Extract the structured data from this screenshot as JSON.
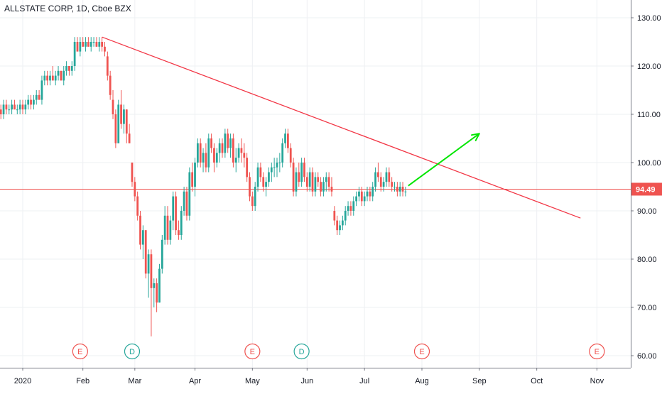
{
  "chart_title": "ALLSTATE CORP, 1D, Cboe BZX",
  "chart_data": {
    "type": "candlestick",
    "title": "ALLSTATE CORP, 1D, Cboe BZX",
    "y_axis": {
      "ticks": [
        60,
        70,
        80,
        90,
        100,
        110,
        120,
        130
      ],
      "tick_labels": [
        "60.00",
        "70.00",
        "80.00",
        "90.00",
        "100.00",
        "110.00",
        "120.00",
        "130.00"
      ],
      "range": [
        57.5,
        133
      ],
      "position": "right"
    },
    "x_axis": {
      "ticks": [
        {
          "label": "2020",
          "day": 0
        },
        {
          "label": "Feb",
          "day": 22
        },
        {
          "label": "Mar",
          "day": 41
        },
        {
          "label": "Apr",
          "day": 63
        },
        {
          "label": "May",
          "day": 84
        },
        {
          "label": "Jun",
          "day": 104
        },
        {
          "label": "Jul",
          "day": 125
        },
        {
          "label": "Aug",
          "day": 146
        },
        {
          "label": "Sep",
          "day": 167
        },
        {
          "label": "Oct",
          "day": 188
        },
        {
          "label": "Nov",
          "day": 210
        }
      ],
      "range": [
        -8,
        225
      ]
    },
    "last_price": {
      "value": 94.49,
      "label": "94.49",
      "color": "#ef5350"
    },
    "colors": {
      "up": "#26a69a",
      "down": "#ef5350",
      "grid": "#eef0f3",
      "text": "#131722"
    },
    "candles": [
      [
        -8,
        111,
        112,
        109,
        110
      ],
      [
        -7,
        110,
        113,
        109,
        112
      ],
      [
        -6,
        112,
        113,
        110,
        111
      ],
      [
        -5,
        111,
        112,
        110,
        111
      ],
      [
        -4,
        111,
        113,
        110,
        112
      ],
      [
        -3,
        112,
        113,
        111,
        111
      ],
      [
        -2,
        111,
        112,
        110,
        111
      ],
      [
        -1,
        111,
        113,
        110,
        112
      ],
      [
        0,
        112,
        113,
        110,
        111
      ],
      [
        1,
        111,
        113,
        110,
        112
      ],
      [
        2,
        112,
        114,
        111,
        113
      ],
      [
        3,
        113,
        114,
        111,
        112
      ],
      [
        4,
        112,
        114,
        111,
        113
      ],
      [
        5,
        113,
        115,
        112,
        114
      ],
      [
        6,
        114,
        115,
        113,
        113
      ],
      [
        7,
        113,
        118,
        112,
        117
      ],
      [
        8,
        117,
        119,
        116,
        118
      ],
      [
        9,
        118,
        119,
        116,
        117
      ],
      [
        10,
        117,
        119,
        116,
        118
      ],
      [
        11,
        118,
        120,
        117,
        117
      ],
      [
        12,
        117,
        119,
        116,
        118
      ],
      [
        13,
        118,
        120,
        117,
        119
      ],
      [
        14,
        119,
        119,
        117,
        117
      ],
      [
        15,
        117,
        120,
        116,
        119
      ],
      [
        16,
        119,
        121,
        118,
        120
      ],
      [
        17,
        120,
        120,
        118,
        119
      ],
      [
        18,
        119,
        121,
        118,
        120
      ],
      [
        19,
        120,
        126,
        119,
        125
      ],
      [
        20,
        125,
        126,
        123,
        123
      ],
      [
        21,
        123,
        126,
        122,
        125
      ],
      [
        22,
        125,
        126,
        124,
        124
      ],
      [
        23,
        124,
        126,
        123,
        125
      ],
      [
        24,
        125,
        126,
        124,
        124
      ],
      [
        25,
        124,
        126,
        123,
        125
      ],
      [
        26,
        125,
        126,
        124,
        125
      ],
      [
        27,
        125,
        126,
        124,
        124
      ],
      [
        28,
        124,
        126,
        123,
        125
      ],
      [
        29,
        125,
        126,
        123,
        124
      ],
      [
        30,
        124,
        125,
        122,
        123
      ],
      [
        31,
        122,
        123,
        117,
        118
      ],
      [
        32,
        118,
        119,
        113,
        114
      ],
      [
        33,
        113,
        115,
        109,
        110
      ],
      [
        34,
        110,
        111,
        103,
        104
      ],
      [
        35,
        104,
        113,
        104,
        112
      ],
      [
        36,
        112,
        115,
        107,
        108
      ],
      [
        37,
        108,
        112,
        106,
        111
      ],
      [
        38,
        111,
        111,
        104,
        106
      ],
      [
        39,
        106,
        108,
        104,
        104
      ],
      [
        40,
        100,
        100,
        95,
        96
      ],
      [
        41,
        96,
        97,
        92,
        93
      ],
      [
        42,
        93,
        94,
        88,
        89
      ],
      [
        43,
        89,
        90,
        82,
        83
      ],
      [
        44,
        83,
        87,
        80,
        86
      ],
      [
        45,
        86,
        86,
        76,
        77
      ],
      [
        46,
        77,
        82,
        72,
        81
      ],
      [
        47,
        81,
        82,
        64,
        74
      ],
      [
        48,
        74,
        76,
        70,
        75
      ],
      [
        49,
        75,
        76,
        69,
        71
      ],
      [
        50,
        71,
        79,
        71,
        78
      ],
      [
        51,
        78,
        85,
        77,
        84
      ],
      [
        52,
        84,
        91,
        83,
        89
      ],
      [
        53,
        89,
        91,
        83,
        84
      ],
      [
        54,
        84,
        89,
        83,
        88
      ],
      [
        55,
        88,
        94,
        86,
        93
      ],
      [
        56,
        93,
        94,
        85,
        86
      ],
      [
        57,
        86,
        88,
        84,
        85
      ],
      [
        58,
        85,
        91,
        84,
        90
      ],
      [
        59,
        90,
        95,
        89,
        94
      ],
      [
        60,
        94,
        95,
        88,
        89
      ],
      [
        61,
        89,
        99,
        88,
        98
      ],
      [
        62,
        98,
        100,
        94,
        95
      ],
      [
        63,
        95,
        101,
        93,
        100
      ],
      [
        64,
        100,
        105,
        99,
        104
      ],
      [
        65,
        104,
        105,
        99,
        100
      ],
      [
        66,
        100,
        103,
        98,
        102
      ],
      [
        67,
        102,
        104,
        98,
        99
      ],
      [
        68,
        99,
        106,
        98,
        105
      ],
      [
        69,
        105,
        106,
        102,
        103
      ],
      [
        70,
        103,
        104,
        98,
        100
      ],
      [
        71,
        100,
        103,
        99,
        102
      ],
      [
        72,
        102,
        105,
        100,
        104
      ],
      [
        73,
        104,
        105,
        101,
        102
      ],
      [
        74,
        102,
        107,
        101,
        106
      ],
      [
        75,
        106,
        107,
        102,
        103
      ],
      [
        76,
        103,
        106,
        101,
        105
      ],
      [
        77,
        105,
        106,
        99,
        100
      ],
      [
        78,
        100,
        103,
        98,
        101
      ],
      [
        79,
        101,
        104,
        100,
        103
      ],
      [
        80,
        103,
        105,
        100,
        102
      ],
      [
        81,
        102,
        104,
        99,
        101
      ],
      [
        82,
        101,
        102,
        96,
        97
      ],
      [
        83,
        97,
        98,
        92,
        93
      ],
      [
        84,
        93,
        94,
        90,
        91
      ],
      [
        85,
        91,
        96,
        90,
        95
      ],
      [
        86,
        95,
        100,
        94,
        99
      ],
      [
        87,
        99,
        100,
        96,
        97
      ],
      [
        88,
        97,
        98,
        94,
        95
      ],
      [
        89,
        95,
        97,
        93,
        96
      ],
      [
        90,
        96,
        99,
        95,
        98
      ],
      [
        91,
        98,
        100,
        96,
        99
      ],
      [
        92,
        99,
        101,
        97,
        99
      ],
      [
        93,
        99,
        101,
        97,
        100
      ],
      [
        94,
        100,
        102,
        98,
        100
      ],
      [
        95,
        100,
        105,
        99,
        104
      ],
      [
        96,
        104,
        107,
        103,
        106
      ],
      [
        97,
        106,
        107,
        102,
        103
      ],
      [
        98,
        103,
        104,
        99,
        100
      ],
      [
        99,
        100,
        101,
        93,
        94
      ],
      [
        100,
        94,
        99,
        93,
        98
      ],
      [
        101,
        98,
        100,
        95,
        96
      ],
      [
        102,
        96,
        101,
        95,
        100
      ],
      [
        103,
        100,
        101,
        96,
        97
      ],
      [
        104,
        97,
        98,
        94,
        95
      ],
      [
        105,
        95,
        99,
        94,
        98
      ],
      [
        106,
        98,
        99,
        93,
        94
      ],
      [
        107,
        94,
        98,
        93,
        97
      ],
      [
        108,
        97,
        98,
        95,
        96
      ],
      [
        109,
        96,
        97,
        93,
        94
      ],
      [
        110,
        94,
        97,
        93,
        96
      ],
      [
        111,
        96,
        98,
        94,
        97
      ],
      [
        112,
        97,
        98,
        94,
        95
      ],
      [
        113,
        95,
        97,
        93,
        94
      ],
      [
        114,
        90,
        91,
        87,
        88
      ],
      [
        115,
        88,
        89,
        85,
        86
      ],
      [
        116,
        86,
        88,
        85,
        87
      ],
      [
        117,
        87,
        89,
        86,
        88
      ],
      [
        118,
        88,
        91,
        87,
        90
      ],
      [
        119,
        90,
        92,
        89,
        91
      ],
      [
        120,
        91,
        92,
        89,
        90
      ],
      [
        121,
        90,
        93,
        89,
        92
      ],
      [
        122,
        92,
        94,
        91,
        93
      ],
      [
        123,
        93,
        95,
        92,
        94
      ],
      [
        124,
        94,
        95,
        91,
        92
      ],
      [
        125,
        92,
        94,
        91,
        93
      ],
      [
        126,
        93,
        95,
        92,
        94
      ],
      [
        127,
        94,
        95,
        92,
        93
      ],
      [
        128,
        93,
        96,
        92,
        95
      ],
      [
        129,
        95,
        99,
        94,
        98
      ],
      [
        130,
        98,
        100,
        96,
        97
      ],
      [
        131,
        97,
        98,
        94,
        95
      ],
      [
        132,
        95,
        97,
        94,
        96
      ],
      [
        133,
        96,
        99,
        95,
        98
      ],
      [
        134,
        98,
        99,
        95,
        96
      ],
      [
        135,
        96,
        97,
        94,
        95
      ],
      [
        136,
        95,
        96,
        94,
        95
      ],
      [
        137,
        95,
        96,
        93,
        94
      ],
      [
        138,
        94,
        96,
        93,
        95
      ],
      [
        139,
        95,
        96,
        93,
        94
      ],
      [
        140,
        94,
        95,
        93,
        94
      ]
    ],
    "trendline": {
      "from": {
        "day": 29,
        "value": 126
      },
      "to": {
        "day": 204,
        "value": 88.5
      },
      "color": "#f23645"
    },
    "arrow": {
      "from": {
        "day": 141,
        "value": 95.2
      },
      "to": {
        "day": 167,
        "value": 106
      },
      "color": "#00e600"
    },
    "event_markers": [
      {
        "day": 21,
        "label": "E",
        "color": "#ef5350"
      },
      {
        "day": 40,
        "label": "D",
        "color": "#26a69a"
      },
      {
        "day": 84,
        "label": "E",
        "color": "#ef5350"
      },
      {
        "day": 102,
        "label": "D",
        "color": "#26a69a"
      },
      {
        "day": 146,
        "label": "E",
        "color": "#ef5350"
      },
      {
        "day": 210,
        "label": "E",
        "color": "#ef5350"
      }
    ]
  }
}
